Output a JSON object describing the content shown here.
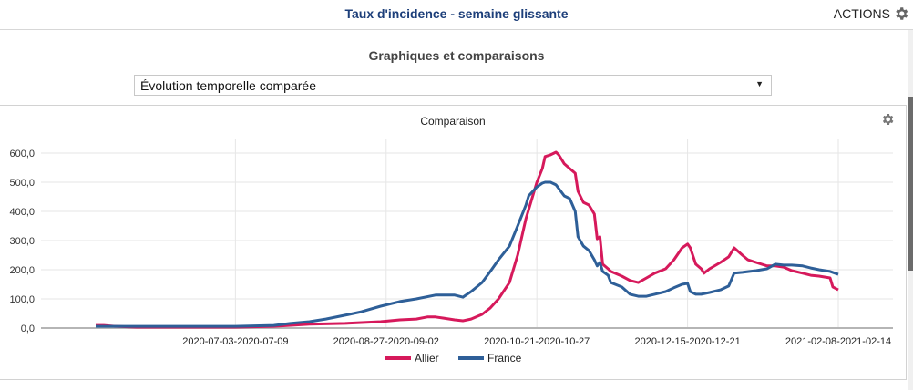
{
  "header": {
    "title": "Taux d'incidence - semaine glissante",
    "actions_label": "ACTIONS",
    "actions_icon": "gear-icon"
  },
  "section": {
    "title": "Graphiques et comparaisons",
    "select_value": "Évolution temporelle comparée",
    "select_icon": "caret-down-icon"
  },
  "card": {
    "settings_icon": "gear-icon"
  },
  "colors": {
    "allier": "#d6195b",
    "france": "#2e5f98",
    "title": "#1d3f7a"
  },
  "chart_data": {
    "type": "line",
    "title": "Comparaison",
    "xlabel": "",
    "ylabel": "",
    "ylim": [
      0,
      600
    ],
    "yticks": [
      0,
      100,
      200,
      300,
      400,
      500,
      600
    ],
    "ytick_labels": [
      "0,0",
      "100,0",
      "200,0",
      "300,0",
      "400,0",
      "500,0",
      "600,0"
    ],
    "x_unit": "days since 2020-05-13 (start of first sliding week)",
    "x_start_date": "2020-05-13",
    "x_range_days": [
      0,
      271
    ],
    "xticks_days": [
      51,
      106,
      161,
      216,
      271
    ],
    "xtick_labels": [
      "2020-07-03-2020-07-09",
      "2020-08-27-2020-09-02",
      "2020-10-21-2020-10-27",
      "2020-12-15-2020-12-21",
      "2021-02-08-2021-02-14"
    ],
    "grid": true,
    "legend_position": "bottom-center",
    "series": [
      {
        "name": "Allier",
        "color": "#d6195b",
        "points": [
          [
            0,
            9
          ],
          [
            3,
            9
          ],
          [
            7,
            6
          ],
          [
            15,
            3
          ],
          [
            31,
            3
          ],
          [
            51,
            3
          ],
          [
            65,
            6
          ],
          [
            78,
            13
          ],
          [
            91,
            16
          ],
          [
            104,
            22
          ],
          [
            111,
            28
          ],
          [
            117,
            31
          ],
          [
            121,
            38
          ],
          [
            124,
            38
          ],
          [
            127,
            34
          ],
          [
            131,
            28
          ],
          [
            134,
            25
          ],
          [
            137,
            31
          ],
          [
            141,
            47
          ],
          [
            144,
            69
          ],
          [
            147,
            100
          ],
          [
            151,
            156
          ],
          [
            154,
            250
          ],
          [
            157,
            375
          ],
          [
            158,
            406
          ],
          [
            161,
            500
          ],
          [
            163,
            547
          ],
          [
            164,
            588
          ],
          [
            166,
            594
          ],
          [
            168,
            603
          ],
          [
            169,
            594
          ],
          [
            171,
            563
          ],
          [
            173,
            547
          ],
          [
            175,
            531
          ],
          [
            176,
            469
          ],
          [
            178,
            431
          ],
          [
            180,
            422
          ],
          [
            182,
            391
          ],
          [
            183,
            306
          ],
          [
            184,
            313
          ],
          [
            185,
            219
          ],
          [
            187,
            203
          ],
          [
            188,
            194
          ],
          [
            192,
            178
          ],
          [
            195,
            163
          ],
          [
            198,
            156
          ],
          [
            201,
            172
          ],
          [
            204,
            188
          ],
          [
            208,
            203
          ],
          [
            211,
            234
          ],
          [
            214,
            275
          ],
          [
            216,
            288
          ],
          [
            217,
            275
          ],
          [
            219,
            219
          ],
          [
            221,
            203
          ],
          [
            222,
            188
          ],
          [
            224,
            203
          ],
          [
            228,
            225
          ],
          [
            231,
            244
          ],
          [
            233,
            275
          ],
          [
            236,
            250
          ],
          [
            238,
            234
          ],
          [
            241,
            225
          ],
          [
            245,
            213
          ],
          [
            248,
            213
          ],
          [
            251,
            209
          ],
          [
            254,
            197
          ],
          [
            258,
            188
          ],
          [
            261,
            181
          ],
          [
            264,
            178
          ],
          [
            268,
            172
          ],
          [
            269,
            141
          ],
          [
            271,
            131
          ]
        ]
      },
      {
        "name": "France",
        "color": "#2e5f98",
        "points": [
          [
            0,
            6
          ],
          [
            15,
            6
          ],
          [
            31,
            6
          ],
          [
            51,
            6
          ],
          [
            65,
            9
          ],
          [
            71,
            16
          ],
          [
            78,
            22
          ],
          [
            84,
            31
          ],
          [
            91,
            44
          ],
          [
            97,
            56
          ],
          [
            104,
            75
          ],
          [
            111,
            91
          ],
          [
            117,
            100
          ],
          [
            124,
            113
          ],
          [
            131,
            113
          ],
          [
            134,
            106
          ],
          [
            137,
            125
          ],
          [
            141,
            156
          ],
          [
            144,
            194
          ],
          [
            147,
            234
          ],
          [
            151,
            281
          ],
          [
            154,
            350
          ],
          [
            157,
            422
          ],
          [
            158,
            453
          ],
          [
            161,
            484
          ],
          [
            163,
            497
          ],
          [
            164,
            500
          ],
          [
            166,
            500
          ],
          [
            168,
            491
          ],
          [
            171,
            453
          ],
          [
            173,
            444
          ],
          [
            175,
            400
          ],
          [
            176,
            313
          ],
          [
            178,
            281
          ],
          [
            180,
            266
          ],
          [
            182,
            234
          ],
          [
            183,
            213
          ],
          [
            184,
            225
          ],
          [
            185,
            194
          ],
          [
            187,
            181
          ],
          [
            188,
            156
          ],
          [
            192,
            141
          ],
          [
            195,
            116
          ],
          [
            198,
            109
          ],
          [
            201,
            109
          ],
          [
            204,
            116
          ],
          [
            208,
            125
          ],
          [
            211,
            138
          ],
          [
            214,
            150
          ],
          [
            216,
            153
          ],
          [
            217,
            125
          ],
          [
            219,
            116
          ],
          [
            221,
            116
          ],
          [
            224,
            122
          ],
          [
            228,
            131
          ],
          [
            231,
            144
          ],
          [
            233,
            188
          ],
          [
            236,
            191
          ],
          [
            241,
            197
          ],
          [
            245,
            203
          ],
          [
            248,
            219
          ],
          [
            251,
            216
          ],
          [
            254,
            216
          ],
          [
            258,
            213
          ],
          [
            261,
            206
          ],
          [
            264,
            200
          ],
          [
            268,
            194
          ],
          [
            271,
            184
          ]
        ]
      }
    ]
  }
}
